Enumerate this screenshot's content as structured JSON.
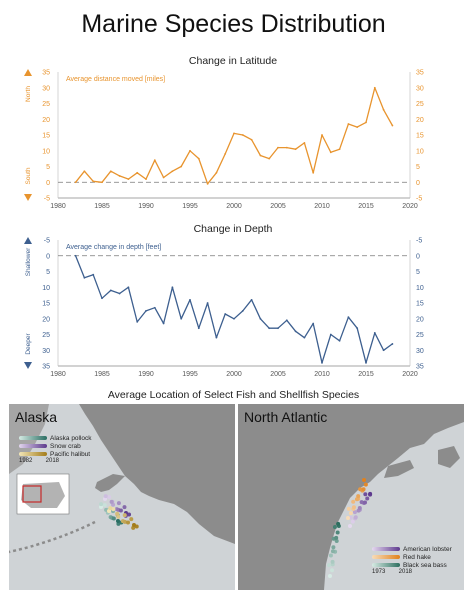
{
  "title": "Marine Species Distribution",
  "colors": {
    "latitude": "#e8942e",
    "depth": "#3d5f8f"
  },
  "chart_data": [
    {
      "type": "line",
      "title": "Change in Latitude",
      "series_label": "Average distance moved [miles]",
      "direction_up": "North",
      "direction_down": "South",
      "xlim": [
        1980,
        2020
      ],
      "ylim": [
        -5,
        35
      ],
      "xticks": [
        1980,
        1985,
        1990,
        1995,
        2000,
        2005,
        2010,
        2015,
        2020
      ],
      "yticks": [
        -5,
        0,
        5,
        10,
        15,
        20,
        25,
        30,
        35
      ],
      "x": [
        1982,
        1983,
        1984,
        1985,
        1986,
        1987,
        1988,
        1989,
        1990,
        1991,
        1992,
        1993,
        1994,
        1995,
        1996,
        1997,
        1998,
        1999,
        2000,
        2001,
        2002,
        2003,
        2004,
        2005,
        2006,
        2007,
        2008,
        2009,
        2010,
        2011,
        2012,
        2013,
        2014,
        2015,
        2016,
        2017,
        2018
      ],
      "values": [
        0,
        3.5,
        0.3,
        0,
        3.5,
        2,
        1,
        3,
        1,
        7,
        1.5,
        3.5,
        5,
        10,
        7.5,
        -0.5,
        3,
        9,
        15.5,
        15,
        13.5,
        8.5,
        7.5,
        11,
        11,
        10.5,
        12.5,
        3,
        15,
        9.5,
        10.5,
        18.5,
        17.5,
        19,
        30,
        23,
        18
      ],
      "zero_line": true
    },
    {
      "type": "line",
      "title": "Change in Depth",
      "series_label": "Average change in depth [feet]",
      "direction_up": "Shallower",
      "direction_down": "Deeper",
      "xlim": [
        1980,
        2020
      ],
      "ylim": [
        35,
        -5
      ],
      "xticks": [
        1980,
        1985,
        1990,
        1995,
        2000,
        2005,
        2010,
        2015,
        2020
      ],
      "yticks": [
        -5,
        0,
        5,
        10,
        15,
        20,
        25,
        30,
        35
      ],
      "x": [
        1982,
        1983,
        1984,
        1985,
        1986,
        1987,
        1988,
        1989,
        1990,
        1991,
        1992,
        1993,
        1994,
        1995,
        1996,
        1997,
        1998,
        1999,
        2000,
        2001,
        2002,
        2003,
        2004,
        2005,
        2006,
        2007,
        2008,
        2009,
        2010,
        2011,
        2012,
        2013,
        2014,
        2015,
        2016,
        2017,
        2018
      ],
      "values": [
        0,
        7,
        6,
        13.5,
        11,
        12,
        10,
        21,
        17.5,
        16.5,
        21.5,
        10,
        20,
        14,
        23,
        15,
        26,
        18.5,
        20,
        17.5,
        14,
        20,
        23,
        23,
        20.5,
        24,
        26,
        21.5,
        34,
        25,
        27,
        19.5,
        23,
        34,
        24.5,
        30,
        28
      ],
      "zero_line": true
    }
  ],
  "maps": {
    "title": "Average Location of Select Fish and Shellfish Species",
    "alaska": {
      "title": "Alaska",
      "legend": [
        {
          "name": "Alaska pollock",
          "from": "#d5ebe4",
          "to": "#2a6e63"
        },
        {
          "name": "Snow crab",
          "from": "#e2d6ee",
          "to": "#5c3a8c"
        },
        {
          "name": "Pacific halibut",
          "from": "#f2e6b8",
          "to": "#a37c1a"
        }
      ],
      "year_start": "1982",
      "year_end": "2018"
    },
    "north_atlantic": {
      "title": "North Atlantic",
      "legend": [
        {
          "name": "American lobster",
          "from": "#e5d8ef",
          "to": "#5e3a8e"
        },
        {
          "name": "Red hake",
          "from": "#f8dcb8",
          "to": "#e0821e"
        },
        {
          "name": "Black sea bass",
          "from": "#d7ebe4",
          "to": "#2d6e5f"
        }
      ],
      "year_start": "1973",
      "year_end": "2018"
    }
  }
}
